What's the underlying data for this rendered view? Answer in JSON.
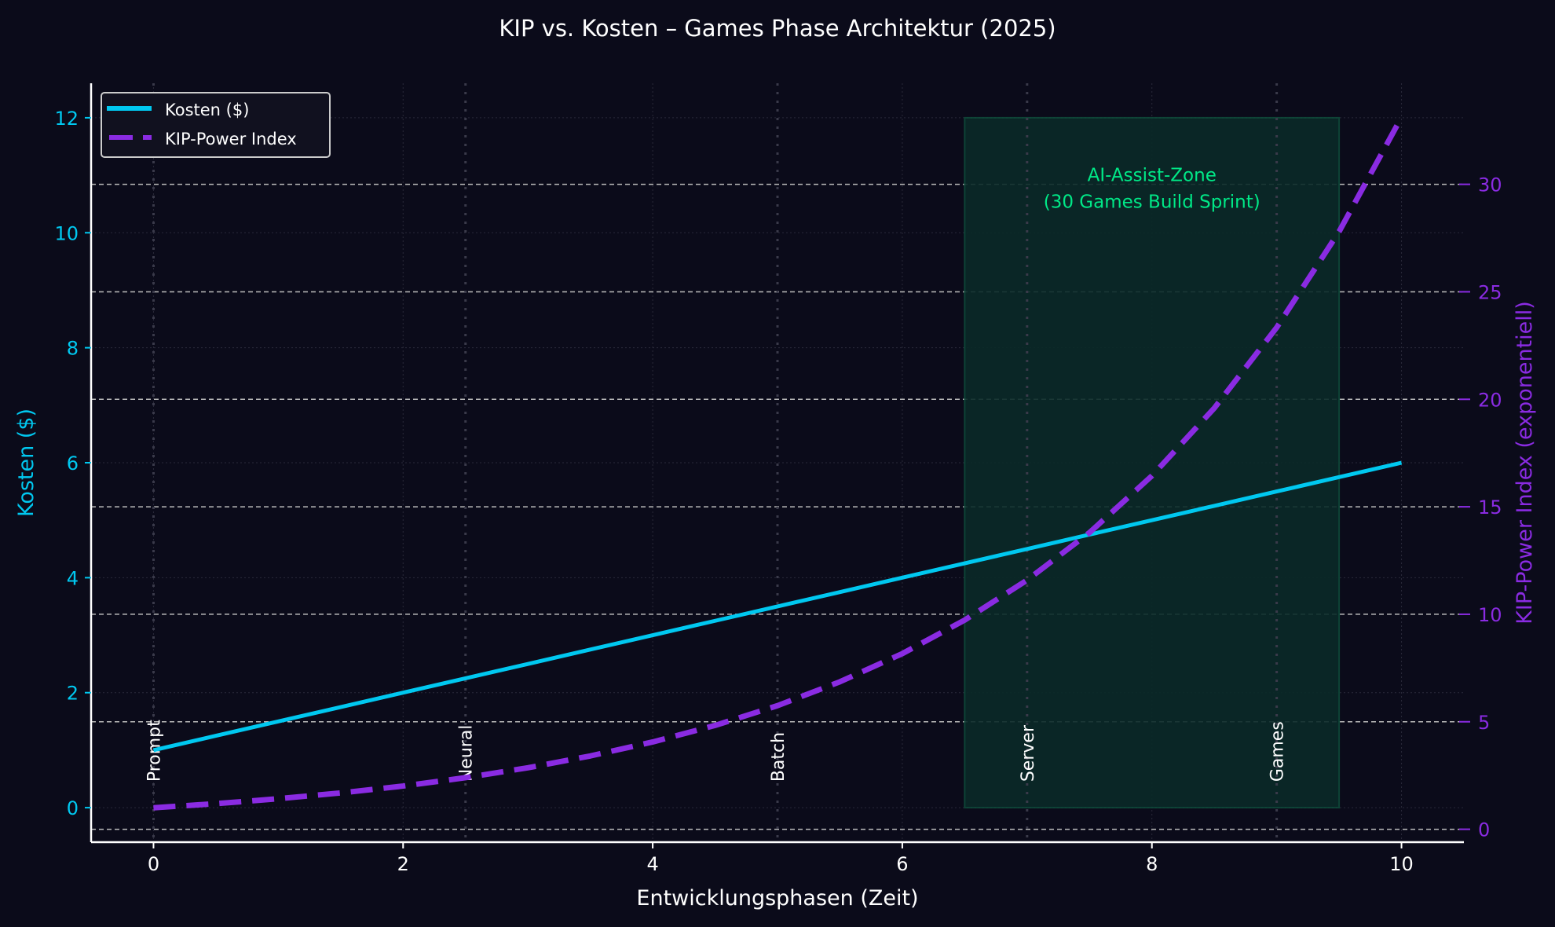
{
  "chart_data": {
    "type": "line",
    "title": "KIP vs. Kosten – Games Phase Architektur (2025)",
    "xlabel": "Entwicklungsphasen (Zeit)",
    "ylabel": "Kosten ($)",
    "y2label": "KIP-Power Index (exponentiell)",
    "xlim": [
      -0.5,
      10.5
    ],
    "ylim": [
      -0.6,
      12.6
    ],
    "y2lim": [
      -0.6,
      34.7
    ],
    "xticks": [
      0,
      2,
      4,
      6,
      8,
      10
    ],
    "yticks": [
      0,
      2,
      4,
      6,
      8,
      10,
      12
    ],
    "y2ticks": [
      0,
      5,
      10,
      15,
      20,
      25,
      30
    ],
    "grid": true,
    "legend_position": "top-left",
    "colors": {
      "background": "#0b0b1a",
      "kosten": "#00c8f0",
      "kip": "#8a2be2",
      "zone_text": "#00e887",
      "zone_fill": "#0a2a28",
      "text": "#ffffff"
    },
    "x": [
      0,
      0.5,
      1,
      1.5,
      2,
      2.5,
      3,
      3.5,
      4,
      4.5,
      5,
      5.5,
      6,
      6.5,
      7,
      7.5,
      8,
      8.5,
      9,
      9.5,
      10
    ],
    "series": [
      {
        "name": "Kosten ($)",
        "axis": "left",
        "style": "solid",
        "values": [
          1,
          1.25,
          1.5,
          1.75,
          2,
          2.25,
          2.5,
          2.75,
          3,
          3.25,
          3.5,
          3.75,
          4,
          4.25,
          4.5,
          4.75,
          5,
          5.25,
          5.5,
          5.75,
          6
        ]
      },
      {
        "name": "KIP-Power Index",
        "axis": "right",
        "style": "dashed",
        "values": [
          1,
          1.19,
          1.42,
          1.69,
          2.01,
          2.4,
          2.86,
          3.41,
          4.06,
          4.83,
          5.75,
          6.86,
          8.17,
          9.73,
          11.59,
          13.8,
          16.44,
          19.59,
          23.34,
          27.8,
          33.12
        ]
      }
    ],
    "phases": [
      {
        "x": 0,
        "label": "Prompt"
      },
      {
        "x": 2.5,
        "label": "Neural"
      },
      {
        "x": 5,
        "label": "Batch"
      },
      {
        "x": 7,
        "label": "Server"
      },
      {
        "x": 9,
        "label": "Games"
      }
    ],
    "zone": {
      "x_start": 6.5,
      "x_end": 9.5,
      "y_start": 0,
      "y_end": 12,
      "label_line1": "AI-Assist-Zone",
      "label_line2": "(30 Games Build Sprint)",
      "label_x": 8,
      "label_y": 10.6
    }
  }
}
